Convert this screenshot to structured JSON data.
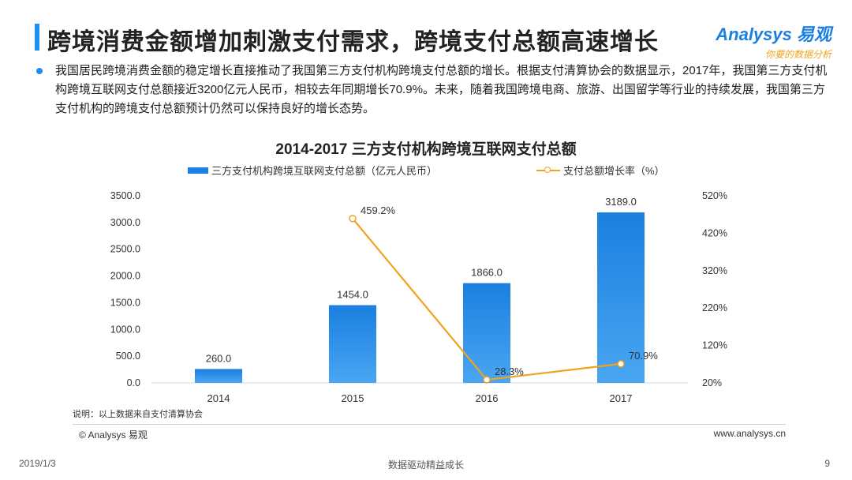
{
  "header": {
    "title": "跨境消费金额增加刺激支付需求，跨境支付总额高速增长",
    "logo_main": "Analysys 易观",
    "logo_sub": "你要的数据分析"
  },
  "paragraph": "我国居民跨境消费金额的稳定增长直接推动了我国第三方支付机构跨境支付总额的增长。根据支付清算协会的数据显示，2017年，我国第三方支付机构跨境互联网支付总额接近3200亿元人民币，相较去年同期增长70.9%。未来，随着我国跨境电商、旅游、出国留学等行业的持续发展，我国第三方支付机构的跨境支付总额预计仍然可以保持良好的增长态势。",
  "chart_data": {
    "type": "bar",
    "title": "2014-2017 三方支付机构跨境互联网支付总额",
    "categories": [
      "2014",
      "2015",
      "2016",
      "2017"
    ],
    "series": [
      {
        "name": "三方支付机构跨境互联网支付总额（亿元人民币）",
        "type": "bar",
        "axis": "left",
        "color": "#1a7fe0",
        "values": [
          260.0,
          1454.0,
          1866.0,
          3189.0
        ],
        "labels": [
          "260.0",
          "1454.0",
          "1866.0",
          "3189.0"
        ]
      },
      {
        "name": "支付总额增长率（%）",
        "type": "line",
        "axis": "right",
        "color": "#f2a21c",
        "values": [
          null,
          459.2,
          28.3,
          70.9
        ],
        "labels": [
          "",
          "459.2%",
          "28.3%",
          "70.9%"
        ]
      }
    ],
    "y_left": {
      "min": 0,
      "max": 3500,
      "ticks": [
        "0.0",
        "500.0",
        "1000.0",
        "1500.0",
        "2000.0",
        "2500.0",
        "3000.0",
        "3500.0"
      ]
    },
    "y_right": {
      "min": 20,
      "max": 520,
      "ticks": [
        "20%",
        "120%",
        "220%",
        "320%",
        "420%",
        "520%"
      ]
    },
    "legend": "top"
  },
  "note": "说明：以上数据来自支付清算协会",
  "footer": {
    "copyright": "© Analysys 易观",
    "website": "www.analysys.cn",
    "date": "2019/1/3",
    "slogan": "数据驱动精益成长",
    "page": "9"
  }
}
